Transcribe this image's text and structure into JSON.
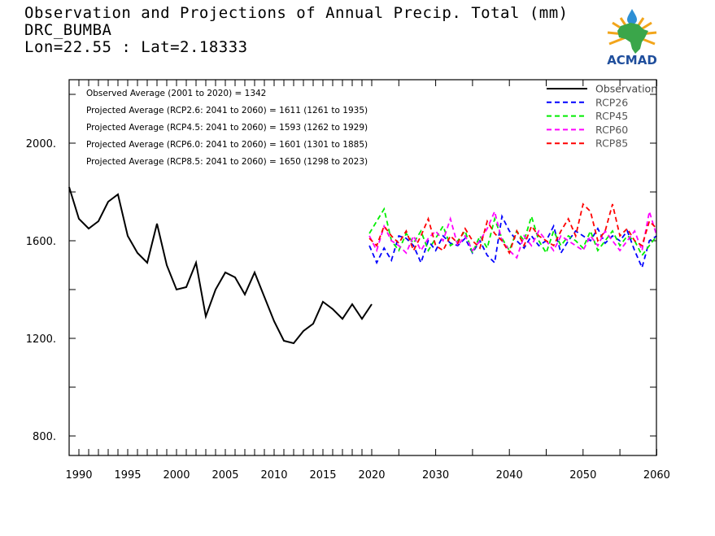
{
  "title_lines": [
    "Observation and Projections of Annual Precip. Total (mm)",
    "DRC_BUMBA",
    "Lon=22.55 : Lat=2.18333"
  ],
  "logo": {
    "text": "ACMAD",
    "text_color": "#1f4e9c",
    "africa_color": "#3aa64a",
    "ray_color": "#f2a51a",
    "drop_color": "#2d8fd5"
  },
  "chart_data": {
    "type": "line",
    "title": "Observation and Projections of Annual Precip. Total (mm)",
    "xlim": [
      1989,
      2060
    ],
    "ylim": [
      710,
      2250
    ],
    "x_ticks": [
      1990,
      1995,
      2000,
      2005,
      2010,
      2015,
      2020,
      2030,
      2040,
      2050,
      2060
    ],
    "y_ticks": [
      800,
      1200,
      1600,
      2000
    ],
    "y_tick_labels": [
      "800.",
      "1200.",
      "1600.",
      "2000."
    ],
    "annotations": [
      "Observed Average (2001 to 2020) = 1342",
      "Projected Average (RCP2.6: 2041 to 2060) = 1611 (1261 to 1935)",
      "Projected Average (RCP4.5: 2041 to 2060) = 1593 (1262 to 1929)",
      "Projected Average (RCP6.0: 2041 to 2060) = 1601 (1301 to 1885)",
      "Projected Average (RCP8.5: 2041 to 2060) = 1650 (1298 to 2023)"
    ],
    "legend_position": "top-right",
    "series": [
      {
        "name": "Observation",
        "color": "#000000",
        "dash": "solid",
        "x": [
          1989,
          1990,
          1991,
          1992,
          1993,
          1994,
          1995,
          1996,
          1997,
          1998,
          1999,
          2000,
          2001,
          2002,
          2003,
          2004,
          2005,
          2006,
          2007,
          2008,
          2009,
          2010,
          2011,
          2012,
          2013,
          2014,
          2015,
          2016,
          2017,
          2018,
          2019,
          2020
        ],
        "values": [
          1820,
          1690,
          1650,
          1680,
          1760,
          1790,
          1620,
          1550,
          1510,
          1670,
          1500,
          1400,
          1410,
          1510,
          1290,
          1400,
          1470,
          1450,
          1380,
          1470,
          1370,
          1270,
          1190,
          1180,
          1230,
          1260,
          1350,
          1320,
          1280,
          1340,
          1280,
          1340
        ]
      },
      {
        "name": "RCP26",
        "color": "#0000ff",
        "dash": "dashed",
        "x": [
          2021,
          2022,
          2023,
          2024,
          2025,
          2026,
          2027,
          2028,
          2029,
          2030,
          2031,
          2032,
          2033,
          2034,
          2035,
          2036,
          2037,
          2038,
          2039,
          2040,
          2041,
          2042,
          2043,
          2044,
          2045,
          2046,
          2047,
          2048,
          2049,
          2050,
          2051,
          2052,
          2053,
          2054,
          2055,
          2056,
          2057,
          2058,
          2059,
          2060
        ],
        "values": [
          1580,
          1510,
          1570,
          1520,
          1620,
          1610,
          1580,
          1510,
          1600,
          1560,
          1620,
          1590,
          1580,
          1610,
          1550,
          1600,
          1540,
          1510,
          1700,
          1640,
          1600,
          1570,
          1620,
          1580,
          1600,
          1660,
          1550,
          1600,
          1640,
          1620,
          1600,
          1650,
          1590,
          1620,
          1600,
          1640,
          1560,
          1490,
          1600,
          1620
        ]
      },
      {
        "name": "RCP45",
        "color": "#00ee00",
        "dash": "dashed",
        "x": [
          2021,
          2022,
          2023,
          2024,
          2025,
          2026,
          2027,
          2028,
          2029,
          2030,
          2031,
          2032,
          2033,
          2034,
          2035,
          2036,
          2037,
          2038,
          2039,
          2040,
          2041,
          2042,
          2043,
          2044,
          2045,
          2046,
          2047,
          2048,
          2049,
          2050,
          2051,
          2052,
          2053,
          2054,
          2055,
          2056,
          2057,
          2058,
          2059,
          2060
        ],
        "values": [
          1630,
          1680,
          1730,
          1600,
          1560,
          1630,
          1590,
          1640,
          1560,
          1610,
          1660,
          1580,
          1600,
          1640,
          1550,
          1620,
          1570,
          1690,
          1610,
          1560,
          1640,
          1600,
          1700,
          1600,
          1550,
          1640,
          1580,
          1620,
          1600,
          1570,
          1640,
          1560,
          1600,
          1640,
          1580,
          1620,
          1600,
          1540,
          1580,
          1620
        ]
      },
      {
        "name": "RCP60",
        "color": "#ff00ff",
        "dash": "dashed",
        "x": [
          2021,
          2022,
          2023,
          2024,
          2025,
          2026,
          2027,
          2028,
          2029,
          2030,
          2031,
          2032,
          2033,
          2034,
          2035,
          2036,
          2037,
          2038,
          2039,
          2040,
          2041,
          2042,
          2043,
          2044,
          2045,
          2046,
          2047,
          2048,
          2049,
          2050,
          2051,
          2052,
          2053,
          2054,
          2055,
          2056,
          2057,
          2058,
          2059,
          2060
        ],
        "values": [
          1620,
          1560,
          1660,
          1600,
          1580,
          1550,
          1620,
          1560,
          1610,
          1640,
          1600,
          1690,
          1580,
          1620,
          1560,
          1600,
          1650,
          1720,
          1600,
          1560,
          1530,
          1620,
          1580,
          1640,
          1600,
          1560,
          1620,
          1600,
          1580,
          1560,
          1620,
          1580,
          1640,
          1600,
          1560,
          1600,
          1640,
          1560,
          1720,
          1620
        ]
      },
      {
        "name": "RCP85",
        "color": "#ff0000",
        "dash": "dashed",
        "x": [
          2021,
          2022,
          2023,
          2024,
          2025,
          2026,
          2027,
          2028,
          2029,
          2030,
          2031,
          2032,
          2033,
          2034,
          2035,
          2036,
          2037,
          2038,
          2039,
          2040,
          2041,
          2042,
          2043,
          2044,
          2045,
          2046,
          2047,
          2048,
          2049,
          2050,
          2051,
          2052,
          2053,
          2054,
          2055,
          2056,
          2057,
          2058,
          2059,
          2060
        ],
        "values": [
          1610,
          1580,
          1660,
          1620,
          1590,
          1640,
          1560,
          1620,
          1690,
          1580,
          1560,
          1620,
          1590,
          1650,
          1600,
          1570,
          1680,
          1630,
          1600,
          1550,
          1640,
          1580,
          1660,
          1620,
          1600,
          1580,
          1640,
          1690,
          1620,
          1750,
          1720,
          1600,
          1640,
          1750,
          1620,
          1650,
          1600,
          1580,
          1680,
          1650
        ]
      }
    ]
  }
}
